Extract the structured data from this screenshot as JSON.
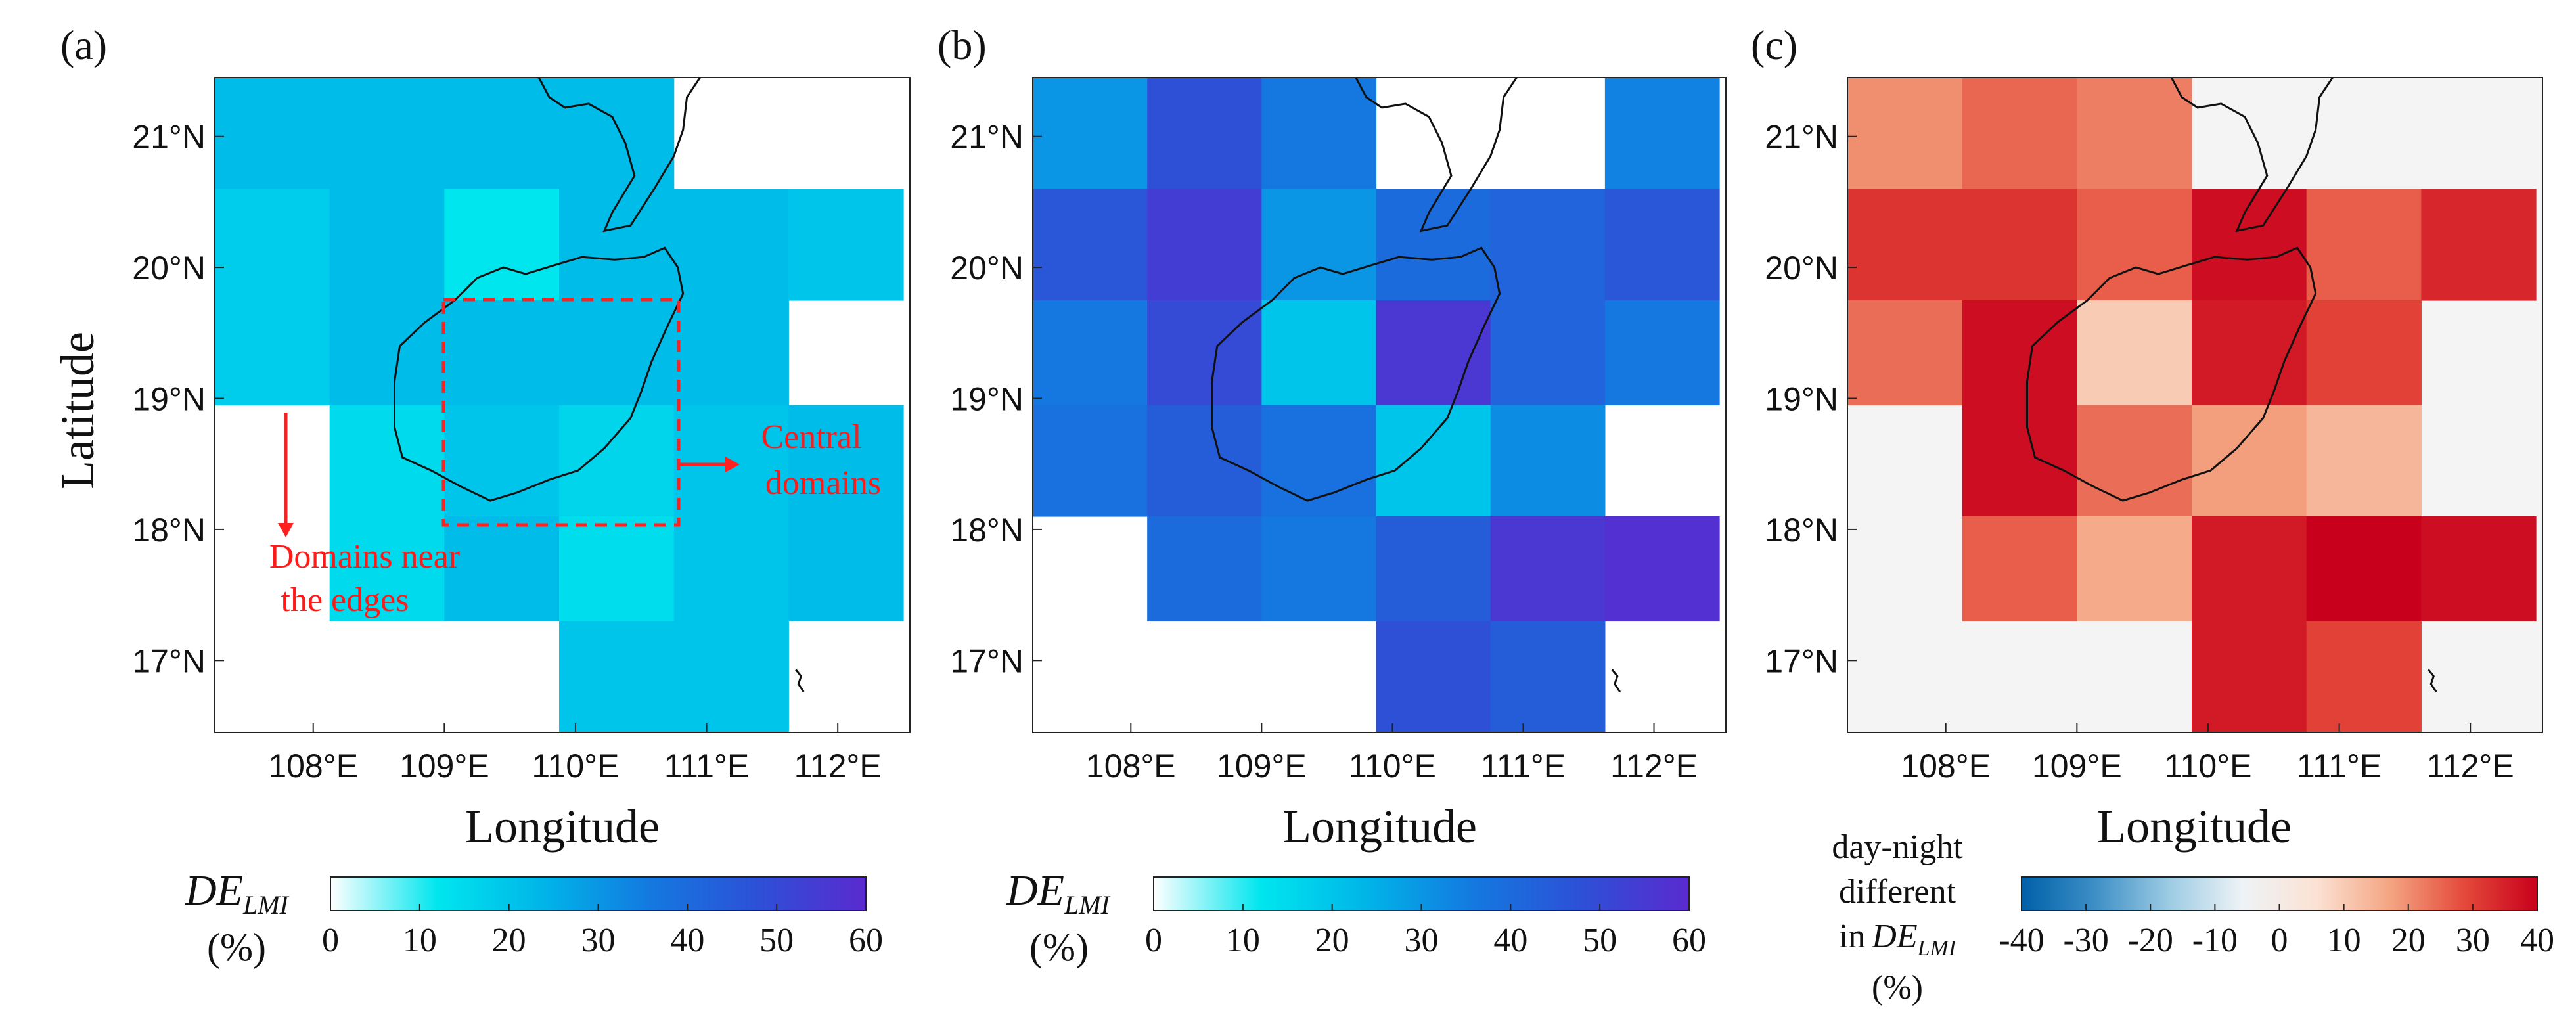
{
  "chart_data": [
    {
      "type": "heatmap",
      "panel_label": "(a)",
      "xlabel": "Longitude",
      "ylabel": "Latitude",
      "xlim": [
        107.25,
        112.55
      ],
      "ylim": [
        16.45,
        21.45
      ],
      "x_ticks": [
        108,
        109,
        110,
        111,
        112
      ],
      "x_tick_labels": [
        "108°E",
        "109°E",
        "110°E",
        "111°E",
        "112°E"
      ],
      "y_ticks": [
        17,
        18,
        19,
        20,
        21
      ],
      "y_tick_labels": [
        "17°N",
        "18°N",
        "19°N",
        "20°N",
        "21°N"
      ],
      "cell_x_edges": [
        107.25,
        108.125,
        109.0,
        109.875,
        110.75,
        111.625,
        112.5
      ],
      "cell_y_edges": [
        21.45,
        20.6,
        19.75,
        18.95,
        18.1,
        17.3,
        16.45
      ],
      "values": [
        [
          22,
          22,
          22,
          22,
          null,
          null
        ],
        [
          18,
          22,
          12,
          22,
          22,
          20
        ],
        [
          18,
          22,
          22,
          22,
          22,
          null
        ],
        [
          null,
          15,
          20,
          16,
          20,
          22
        ],
        [
          null,
          15,
          22,
          14,
          20,
          22
        ],
        [
          null,
          null,
          null,
          20,
          20,
          null
        ]
      ],
      "annotations": [
        {
          "text_lines": [
            "Domains near",
            "the edges"
          ]
        },
        {
          "text_lines": [
            "Central",
            "domains"
          ]
        }
      ],
      "highlight_box": {
        "lon": [
          109.0,
          110.75
        ],
        "lat": [
          18.1,
          19.75
        ]
      },
      "colorbar": {
        "title": "DE",
        "title_sub": "LMI",
        "unit": "(%)",
        "range": [
          0,
          60
        ],
        "ticks": [
          0,
          10,
          20,
          30,
          40,
          50,
          60
        ],
        "tick_labels": [
          "0",
          "10",
          "20",
          "30",
          "40",
          "50",
          "60"
        ],
        "colors": [
          "#ffffff",
          "#00e6ee",
          "#00b4e8",
          "#1478e0",
          "#2d50d6",
          "#5a2ad0"
        ]
      }
    },
    {
      "type": "heatmap",
      "panel_label": "(b)",
      "xlabel": "Longitude",
      "ylabel": "",
      "xlim": [
        107.25,
        112.55
      ],
      "ylim": [
        16.45,
        21.45
      ],
      "x_ticks": [
        108,
        109,
        110,
        111,
        112
      ],
      "x_tick_labels": [
        "108°E",
        "109°E",
        "110°E",
        "111°E",
        "112°E"
      ],
      "y_ticks": [
        17,
        18,
        19,
        20,
        21
      ],
      "y_tick_labels": [
        "17°N",
        "18°N",
        "19°N",
        "20°N",
        "21°N"
      ],
      "cell_x_edges": [
        107.25,
        108.125,
        109.0,
        109.875,
        110.75,
        111.625,
        112.5
      ],
      "cell_y_edges": [
        21.45,
        20.6,
        19.75,
        18.95,
        18.1,
        17.3,
        16.45
      ],
      "values": [
        [
          30,
          48,
          36,
          null,
          null,
          34
        ],
        [
          46,
          54,
          30,
          40,
          42,
          46
        ],
        [
          36,
          50,
          20,
          56,
          42,
          36
        ],
        [
          38,
          44,
          38,
          20,
          32,
          null
        ],
        [
          null,
          40,
          36,
          44,
          56,
          58
        ],
        [
          null,
          null,
          null,
          48,
          44,
          null
        ]
      ],
      "colorbar": {
        "title": "DE",
        "title_sub": "LMI",
        "unit": "(%)",
        "range": [
          0,
          60
        ],
        "ticks": [
          0,
          10,
          20,
          30,
          40,
          50,
          60
        ],
        "tick_labels": [
          "0",
          "10",
          "20",
          "30",
          "40",
          "50",
          "60"
        ],
        "colors": [
          "#ffffff",
          "#00e6ee",
          "#00b4e8",
          "#1478e0",
          "#2d50d6",
          "#5a2ad0"
        ]
      }
    },
    {
      "type": "heatmap",
      "panel_label": "(c)",
      "xlabel": "Longitude",
      "ylabel": "",
      "xlim": [
        107.25,
        112.55
      ],
      "ylim": [
        16.45,
        21.45
      ],
      "x_ticks": [
        108,
        109,
        110,
        111,
        112
      ],
      "x_tick_labels": [
        "108°E",
        "109°E",
        "110°E",
        "111°E",
        "112°E"
      ],
      "y_ticks": [
        17,
        18,
        19,
        20,
        21
      ],
      "y_tick_labels": [
        "17°N",
        "18°N",
        "19°N",
        "20°N",
        "21°N"
      ],
      "cell_x_edges": [
        107.25,
        108.125,
        109.0,
        109.875,
        110.75,
        111.625,
        112.5
      ],
      "cell_y_edges": [
        21.45,
        20.6,
        19.75,
        18.95,
        18.1,
        17.3,
        16.45
      ],
      "values": [
        [
          20,
          25,
          22,
          null,
          null,
          null
        ],
        [
          32,
          32,
          26,
          38,
          26,
          34
        ],
        [
          24,
          38,
          10,
          36,
          30,
          null
        ],
        [
          null,
          38,
          24,
          18,
          14,
          null
        ],
        [
          null,
          26,
          16,
          36,
          40,
          38
        ],
        [
          null,
          null,
          null,
          36,
          30,
          null
        ]
      ],
      "colorbar": {
        "title_lines": [
          "day-night",
          "different",
          "in"
        ],
        "title_sub": "LMI",
        "title_de": "DE",
        "unit": "(%)",
        "range": [
          -40,
          40
        ],
        "ticks": [
          -40,
          -30,
          -20,
          -10,
          0,
          10,
          20,
          30,
          40
        ],
        "tick_labels": [
          "-40",
          "-30",
          "-20",
          "-10",
          "0",
          "10",
          "20",
          "30",
          "40"
        ],
        "colors": [
          "#0060a8",
          "#3d8fc6",
          "#9ccbe3",
          "#eef3f6",
          "#fbe2d4",
          "#f4a582",
          "#e44a3a",
          "#c8001c"
        ],
        "no_data_color": "#f4f4f4"
      }
    }
  ]
}
